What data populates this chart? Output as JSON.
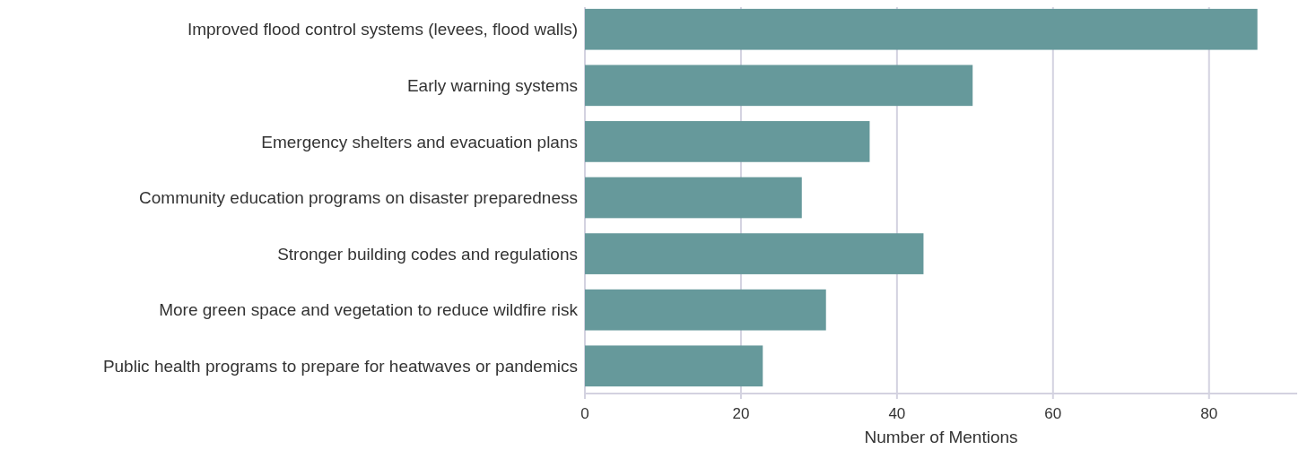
{
  "chart_data": {
    "type": "bar",
    "orientation": "horizontal",
    "xlabel": "Number of Mentions",
    "categories": [
      "Improved flood control systems (levees, flood walls)",
      "Early warning systems",
      "Emergency shelters and evacuation plans",
      "Community education programs on disaster preparedness",
      "Stronger building codes and regulations",
      "More green space and vegetation to reduce wildfire risk",
      "Public health programs to prepare for heatwaves or pandemics"
    ],
    "values": [
      86.2,
      49.7,
      36.5,
      27.8,
      43.4,
      30.9,
      22.8
    ],
    "color": "#66999b",
    "xlim": [
      0,
      91.3
    ],
    "xticks": [
      0,
      20,
      40,
      60,
      80
    ],
    "grid": "x"
  }
}
